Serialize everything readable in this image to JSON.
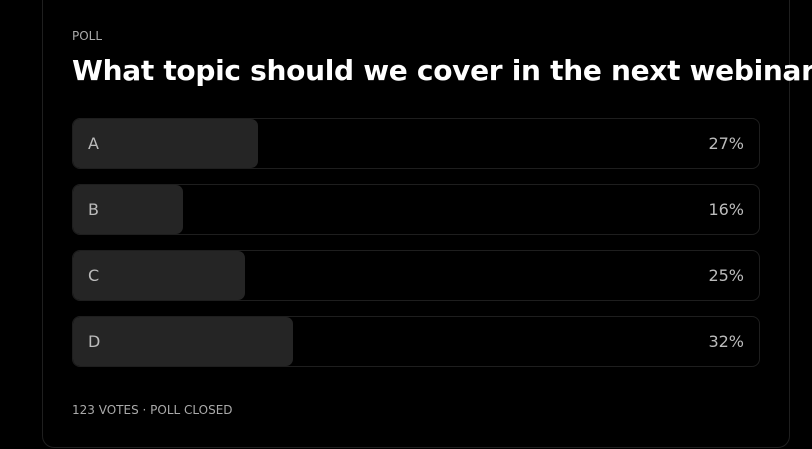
{
  "poll": {
    "label": "POLL",
    "question": "What topic should we cover in the next webinar?",
    "options": [
      {
        "label": "A",
        "value": 27,
        "value_label": "27%"
      },
      {
        "label": "B",
        "value": 16,
        "value_label": "16%"
      },
      {
        "label": "C",
        "value": 25,
        "value_label": "25%"
      },
      {
        "label": "D",
        "value": 32,
        "value_label": "32%"
      }
    ],
    "footer": "123 VOTES · POLL CLOSED"
  }
}
